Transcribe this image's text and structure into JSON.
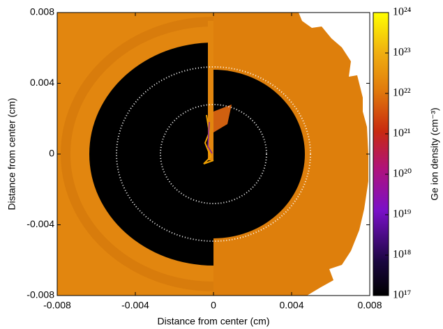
{
  "chart_data": {
    "type": "heatmap",
    "xlabel": "Distance from center (cm)",
    "ylabel": "Distance from center (cm)",
    "xlim": [
      -0.008,
      0.008
    ],
    "xticks": [
      -0.008,
      -0.004,
      0,
      0.004,
      0.008
    ],
    "ylim": [
      -0.008,
      0.008
    ],
    "yticks": [
      -0.008,
      -0.004,
      0,
      0.004,
      0.008
    ],
    "colorbar": {
      "label": "Ge ion density (cm⁻³)",
      "scale": "log",
      "lim": [
        1e+17,
        1e+24
      ],
      "ticks": [
        {
          "value": 1e+17,
          "label": "10¹⁷"
        },
        {
          "value": 1e+18,
          "label": "10¹⁸"
        },
        {
          "value": 1e+19,
          "label": "10¹⁹"
        },
        {
          "value": 1e+20,
          "label": "10²⁰"
        },
        {
          "value": 1e+21,
          "label": "10²¹"
        },
        {
          "value": 1e+22,
          "label": "10²²"
        },
        {
          "value": 1e+23,
          "label": "10²³"
        },
        {
          "value": 1e+24,
          "label": "10²⁴"
        }
      ]
    }
  }
}
